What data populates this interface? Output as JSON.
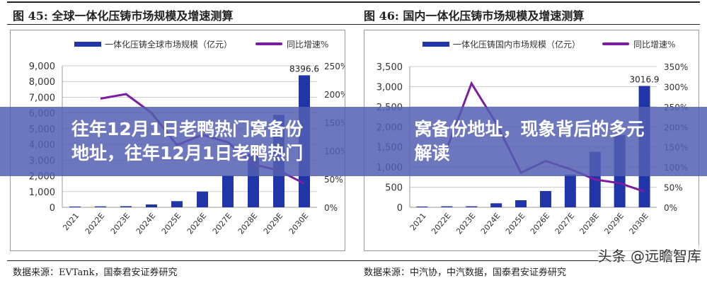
{
  "banner_title": "往年12月1日老鸭热门窝备份地址，往年12月1日老鸭热门窝备份地址，现象背后的多元解读",
  "watermark": "头条 @远瞻智库",
  "colors": {
    "bar": "#1f35a8",
    "line": "#7a1fa2",
    "banner": "#545fb2"
  },
  "chart_data": [
    {
      "type": "bar",
      "title": "图 45: 全球一体化压铸市场规模及增速测算",
      "source": "数据来源：EVTank，国泰君安证券研究",
      "categories": [
        "2021",
        "2022E",
        "2023E",
        "2024E",
        "2025E",
        "2026E",
        "2027E",
        "2028E",
        "2029E",
        "2030E"
      ],
      "series": [
        {
          "name": "一体化压铸全球市场规模（亿元）",
          "type": "bar",
          "axis": "left",
          "values": [
            50,
            60,
            70,
            180,
            390,
            1000,
            2020,
            3400,
            5880,
            8396.6
          ]
        },
        {
          "name": "同比增速%",
          "type": "line",
          "axis": "right",
          "values": [
            null,
            192,
            200,
            167,
            110,
            128,
            115,
            76,
            65,
            42
          ]
        }
      ],
      "data_label": "8396.6",
      "ylim": [
        0,
        9000
      ],
      "yticks": [
        "0",
        "1,000",
        "2,000",
        "3,000",
        "4,000",
        "5,000",
        "6,000",
        "7,000",
        "8,000",
        "9,000"
      ],
      "y2lim": [
        0,
        250
      ],
      "y2ticks": [
        "0%",
        "50%",
        "100%",
        "150%",
        "200%",
        "250%"
      ],
      "grid": true,
      "legend": "top"
    },
    {
      "type": "bar",
      "title": "图 46: 国内一体化压铸市场规模及增速测算",
      "source": "数据来源：中汽协，中汽数据，国泰君安证券研究",
      "categories": [
        "2021",
        "2022E",
        "2023E",
        "2024E",
        "2025E",
        "2026E",
        "2027E",
        "2028E",
        "2029E",
        "2030E"
      ],
      "series": [
        {
          "name": "一体化压铸国内市场规模（亿元）",
          "type": "bar",
          "axis": "left",
          "values": [
            20,
            25,
            25,
            100,
            176,
            405,
            815,
            1378,
            1800,
            3016.9
          ]
        },
        {
          "name": "同比增速%",
          "type": "line",
          "axis": "right",
          "values": [
            null,
            145,
            308,
            209,
            86,
            115,
            95,
            69,
            60,
            39
          ]
        }
      ],
      "data_label": "3016.9",
      "ylim": [
        0,
        3500
      ],
      "yticks": [
        "0",
        "500",
        "1,000",
        "1,500",
        "2,000",
        "2,500",
        "3,000",
        "3,500"
      ],
      "y2lim": [
        0,
        350
      ],
      "y2ticks": [
        "0%",
        "50%",
        "100%",
        "150%",
        "200%",
        "250%",
        "300%",
        "350%"
      ],
      "grid": true,
      "legend": "top"
    }
  ]
}
